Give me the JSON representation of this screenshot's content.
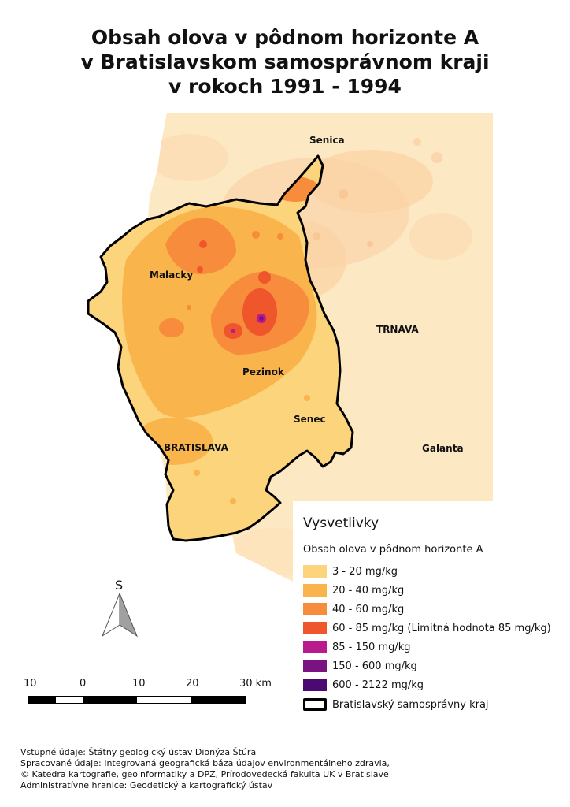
{
  "title": {
    "line1": "Obsah olova v pôdnom horizonte A",
    "line2": "v Bratislavskom samosprávnom kraji",
    "line3": "v rokoch 1991 - 1994"
  },
  "places": {
    "senica": "Senica",
    "malacky": "Malacky",
    "trnava": "TRNAVA",
    "pezinok": "Pezinok",
    "senec": "Senec",
    "bratislava": "BRATISLAVA",
    "galanta": "Galanta"
  },
  "legend": {
    "heading": "Vysvetlivky",
    "subheading": "Obsah olova v pôdnom horizonte A",
    "classes": [
      {
        "label": "3 - 20 mg/kg",
        "color": "#fcd47c"
      },
      {
        "label": "20 - 40 mg/kg",
        "color": "#f9b44c"
      },
      {
        "label": "40 - 60 mg/kg",
        "color": "#f68c3c"
      },
      {
        "label": "60 - 85 mg/kg (Limitná hodnota 85 mg/kg)",
        "color": "#f0562c"
      },
      {
        "label": "85 - 150 mg/kg",
        "color": "#b81c8c"
      },
      {
        "label": "150 - 600 mg/kg",
        "color": "#7a1282"
      },
      {
        "label": "600 - 2122 mg/kg",
        "color": "#4a0a72"
      }
    ],
    "boundary_label": "Bratislavský samosprávny kraj"
  },
  "north_arrow": {
    "letter": "S",
    "icon": "north-arrow-icon"
  },
  "scale": {
    "labels": [
      "10",
      "0",
      "10",
      "20",
      "30 km"
    ]
  },
  "credits": {
    "line1": "Vstupné údaje: Štátny geologický ústav Dionýza Štúra",
    "line2": "Spracované údaje: Integrovaná geografická báza údajov environmentálneho zdravia,",
    "line3": "© Katedra kartografie, geoinformatiky a DPZ, Prírodovedecká fakulta UK v Bratislave",
    "line4": "Administratívne hranice: Geodetický a kartografický ústav"
  },
  "colors": {
    "outside_region": "#fde6bc",
    "outside_mid": "#fbd9a8",
    "boundary": "#000000"
  }
}
